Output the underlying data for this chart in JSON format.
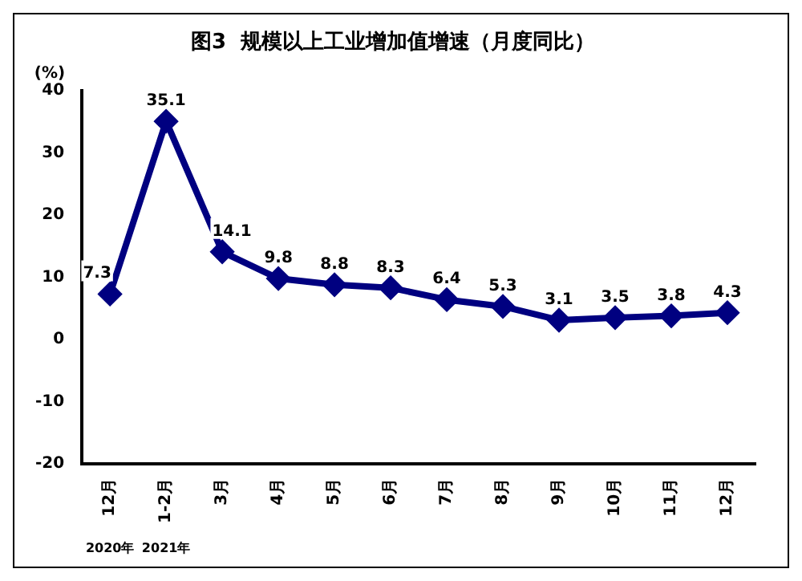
{
  "chart_data": {
    "type": "line",
    "title": "图3  规模以上工业增加值增速（月度同比）",
    "ylabel": "(%)",
    "categories": [
      "12月",
      "1-2月",
      "3月",
      "4月",
      "5月",
      "6月",
      "7月",
      "8月",
      "9月",
      "10月",
      "11月",
      "12月"
    ],
    "series": [
      {
        "color": "#000080",
        "values": [
          7.3,
          35.1,
          14.1,
          9.8,
          8.8,
          8.3,
          6.4,
          5.3,
          3.1,
          3.5,
          3.8,
          4.3
        ]
      }
    ],
    "ylim": [
      -20,
      40
    ],
    "yticks": [
      -20,
      -10,
      0,
      10,
      20,
      30,
      40
    ],
    "grid": false,
    "legend": false,
    "marker": "diamond",
    "line_style": "solid",
    "data_labels": true,
    "annotations": [
      "2020年",
      "2021年"
    ]
  }
}
